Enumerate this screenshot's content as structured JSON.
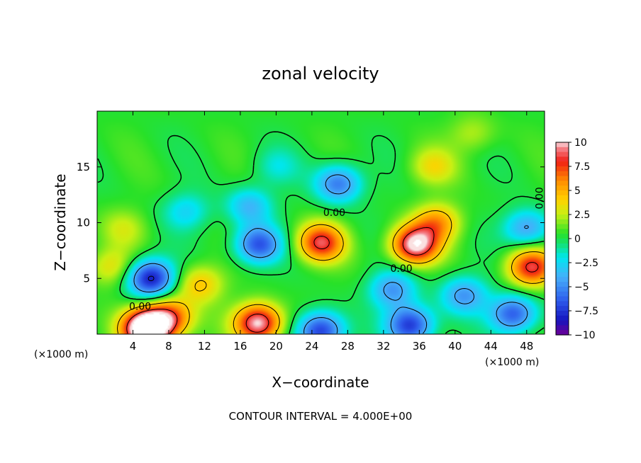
{
  "chart_data": {
    "type": "heatmap",
    "title": "zonal velocity",
    "xlabel": "X−coordinate",
    "ylabel": "Z−coordinate",
    "x_unit_left": "(×1000 m)",
    "x_unit_right": "(×1000 m)",
    "footer": "CONTOUR INTERVAL = 4.000E+00",
    "xlim": [
      0,
      50
    ],
    "ylim": [
      0,
      20
    ],
    "x_ticks": [
      "4",
      "8",
      "12",
      "16",
      "20",
      "24",
      "28",
      "32",
      "36",
      "40",
      "44",
      "48"
    ],
    "y_ticks": [
      "5",
      "10",
      "15"
    ],
    "colorbar": {
      "range": [
        -10,
        10
      ],
      "ticks": [
        "10",
        "7.5",
        "5",
        "2.5",
        "0",
        "−2.5",
        "−5",
        "−7.5",
        "−10"
      ]
    },
    "contour_labels": [
      {
        "text": "0.00",
        "x": 26.5,
        "z": 10.6
      },
      {
        "text": "0.00",
        "x": 34.0,
        "z": 5.6
      },
      {
        "text": "0.00",
        "x": 4.8,
        "z": 2.2
      },
      {
        "text": "0.00",
        "x": 49.8,
        "z": 12.2
      }
    ],
    "features": [
      {
        "x": 5.5,
        "z": 0.5,
        "value": 14
      },
      {
        "x": 18.0,
        "z": 1.0,
        "value": 10
      },
      {
        "x": 8.0,
        "z": 1.5,
        "value": 7
      },
      {
        "x": 11.5,
        "z": 4.5,
        "value": 4
      },
      {
        "x": 25.0,
        "z": 8.2,
        "value": 8
      },
      {
        "x": 35.5,
        "z": 8.0,
        "value": 10
      },
      {
        "x": 38.0,
        "z": 10.0,
        "value": 5
      },
      {
        "x": 48.5,
        "z": 6.0,
        "value": 8
      },
      {
        "x": 37.5,
        "z": 15.0,
        "value": 3
      },
      {
        "x": 42.0,
        "z": 18.0,
        "value": 2
      },
      {
        "x": 6.0,
        "z": 5.0,
        "value": -9
      },
      {
        "x": 18.0,
        "z": 8.0,
        "value": -7
      },
      {
        "x": 27.0,
        "z": 13.5,
        "value": -6
      },
      {
        "x": 17.0,
        "z": 11.5,
        "value": -4
      },
      {
        "x": 33.0,
        "z": 4.0,
        "value": -5
      },
      {
        "x": 35.0,
        "z": 0.8,
        "value": -8
      },
      {
        "x": 25.0,
        "z": 0.3,
        "value": -8
      },
      {
        "x": 46.5,
        "z": 1.8,
        "value": -7
      },
      {
        "x": 41.0,
        "z": 3.5,
        "value": -5
      },
      {
        "x": 48.0,
        "z": 9.5,
        "value": -5
      },
      {
        "x": 20.0,
        "z": 15.0,
        "value": -2
      },
      {
        "x": 10.0,
        "z": 11.0,
        "value": -3
      },
      {
        "x": 3.0,
        "z": 9.5,
        "value": 2
      },
      {
        "x": 1.5,
        "z": 6.0,
        "value": 3
      }
    ]
  }
}
